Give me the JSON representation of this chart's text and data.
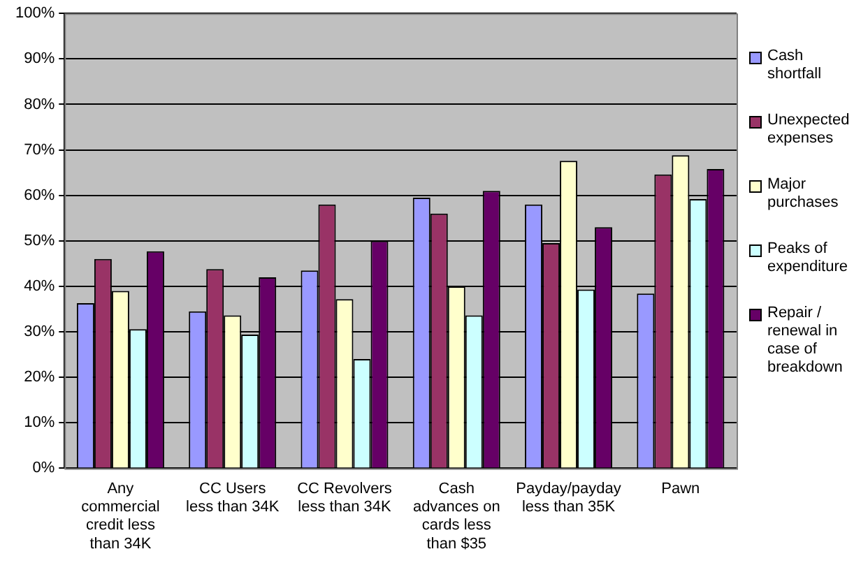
{
  "chart_data": {
    "type": "bar",
    "categories": [
      "Any commercial credit less than 34K",
      "CC Users less than 34K",
      "CC Revolvers less than 34K",
      "Cash advances on cards less than $35",
      "Payday/payday less than 35K",
      "Pawn"
    ],
    "series": [
      {
        "name": "Cash shortfall",
        "color": "#9999ff",
        "values": [
          36.3,
          34.5,
          43.5,
          59.5,
          58,
          38.4
        ]
      },
      {
        "name": "Unexpected expenses",
        "color": "#993366",
        "values": [
          46,
          43.8,
          58,
          56,
          49.5,
          64.6
        ]
      },
      {
        "name": "Major purchases",
        "color": "#ffffcc",
        "values": [
          39,
          33.6,
          37.2,
          40,
          67.6,
          68.8
        ]
      },
      {
        "name": "Peaks of expenditure",
        "color": "#ccffff",
        "values": [
          30.6,
          29.4,
          24,
          33.6,
          39.3,
          59.2
        ]
      },
      {
        "name": "Repair / renewal in case of breakdown",
        "color": "#660066",
        "values": [
          47.7,
          42,
          50,
          61,
          53,
          65.8
        ]
      }
    ],
    "ylim": [
      0,
      100
    ],
    "yticks": [
      {
        "value": 0,
        "label": "0%"
      },
      {
        "value": 10,
        "label": "10%"
      },
      {
        "value": 20,
        "label": "20%"
      },
      {
        "value": 30,
        "label": "30%"
      },
      {
        "value": 40,
        "label": "40%"
      },
      {
        "value": 50,
        "label": "50%"
      },
      {
        "value": 60,
        "label": "60%"
      },
      {
        "value": 70,
        "label": "70%"
      },
      {
        "value": 80,
        "label": "80%"
      },
      {
        "value": 90,
        "label": "90%"
      },
      {
        "value": 100,
        "label": "100%"
      }
    ],
    "grid": "y",
    "legend": "right"
  }
}
